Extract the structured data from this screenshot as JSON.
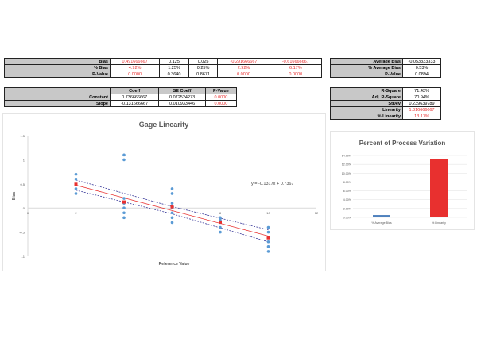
{
  "bias_table": {
    "rows": [
      {
        "label": "Bias",
        "values": [
          "0.491666667",
          "0.125",
          "0.025",
          "-0.291666667",
          "-0.616666667"
        ],
        "red": [
          true,
          false,
          false,
          true,
          true
        ]
      },
      {
        "label": "% Bias",
        "values": [
          "4.92%",
          "1.25%",
          "0.25%",
          "2.92%",
          "6.17%"
        ],
        "red": [
          true,
          false,
          false,
          true,
          true
        ]
      },
      {
        "label": "P-Value",
        "values": [
          "0.0000",
          "0.3640",
          "0.8671",
          "0.0000",
          "0.0000"
        ],
        "red": [
          true,
          false,
          false,
          true,
          true
        ]
      }
    ]
  },
  "coeff_table": {
    "headers": [
      "Coeff",
      "SE Coeff",
      "P-Value"
    ],
    "rows": [
      {
        "label": "Constant",
        "values": [
          "0.736666667",
          "0.072524273",
          "0.0000"
        ]
      },
      {
        "label": "Slope",
        "values": [
          "-0.131666667",
          "0.010933446",
          "0.0000"
        ]
      }
    ]
  },
  "avg_table": {
    "rows": [
      {
        "label": "Average Bias",
        "value": "-0.053333333"
      },
      {
        "label": "% Average Bias",
        "value": "0.53%"
      },
      {
        "label": "P-Value",
        "value": "0.0894"
      }
    ]
  },
  "fit_table": {
    "rows": [
      {
        "label": "R-Square",
        "value": "71.43%"
      },
      {
        "label": "Adj. R-Square",
        "value": "70.94%"
      },
      {
        "label": "StDev",
        "value": "0.239639789"
      },
      {
        "label": "Linearity",
        "value": "1.316666667",
        "red": true
      },
      {
        "label": "% Linearity",
        "value": "13.17%",
        "red": true
      }
    ]
  },
  "chart_data": [
    {
      "type": "scatter",
      "title": "Gage Linearity",
      "xlabel": "Reference Value",
      "ylabel": "Bias",
      "xlim": [
        0,
        12
      ],
      "ylim": [
        -1,
        1.5
      ],
      "xticks": [
        "0",
        "2",
        "4",
        "6",
        "8",
        "10",
        "12"
      ],
      "yticks": [
        "1.5",
        "1",
        "0.5",
        "0",
        "-0.5",
        "-1"
      ],
      "equation": "y = -0.1317x + 0.7367",
      "points": [
        [
          2,
          0.7
        ],
        [
          2,
          0.6
        ],
        [
          2,
          0.4
        ],
        [
          2,
          0.3
        ],
        [
          4,
          1.1
        ],
        [
          4,
          1.0
        ],
        [
          4,
          0.2
        ],
        [
          4,
          0.1
        ],
        [
          4,
          0
        ],
        [
          4,
          -0.1
        ],
        [
          4,
          -0.2
        ],
        [
          6,
          0.4
        ],
        [
          6,
          0.3
        ],
        [
          6,
          0.1
        ],
        [
          6,
          0
        ],
        [
          6,
          -0.1
        ],
        [
          6,
          -0.2
        ],
        [
          6,
          -0.3
        ],
        [
          8,
          -0.2
        ],
        [
          8,
          -0.25
        ],
        [
          8,
          -0.3
        ],
        [
          8,
          -0.4
        ],
        [
          8,
          -0.5
        ],
        [
          10,
          -0.4
        ],
        [
          10,
          -0.5
        ],
        [
          10,
          -0.7
        ],
        [
          10,
          -0.8
        ],
        [
          10,
          -0.9
        ]
      ],
      "means": [
        [
          2,
          0.4917
        ],
        [
          4,
          0.125
        ],
        [
          6,
          0.025
        ],
        [
          8,
          -0.2917
        ],
        [
          10,
          -0.6167
        ]
      ],
      "fit": {
        "slope": -0.1317,
        "intercept": 0.7367
      },
      "ci_upper": [
        [
          2,
          0.58
        ],
        [
          6,
          0.03
        ],
        [
          10,
          -0.45
        ]
      ],
      "ci_lower": [
        [
          2,
          0.37
        ],
        [
          6,
          -0.12
        ],
        [
          10,
          -0.7
        ]
      ],
      "colors": {
        "points": "#5b9bd5",
        "means": "#e8302f",
        "fit": "#e8302f",
        "ci": "#3a3a9a"
      }
    },
    {
      "type": "bar",
      "title": "Percent of Process Variation",
      "categories": [
        "% Average Bias",
        "% Linearity"
      ],
      "values": [
        0.53,
        13.17
      ],
      "ylim": [
        0,
        14
      ],
      "yticks": [
        "14.00%",
        "12.00%",
        "10.00%",
        "8.00%",
        "6.00%",
        "4.00%",
        "2.00%",
        "0.00%"
      ],
      "colors": [
        "#4f81bd",
        "#e8302f"
      ]
    }
  ]
}
